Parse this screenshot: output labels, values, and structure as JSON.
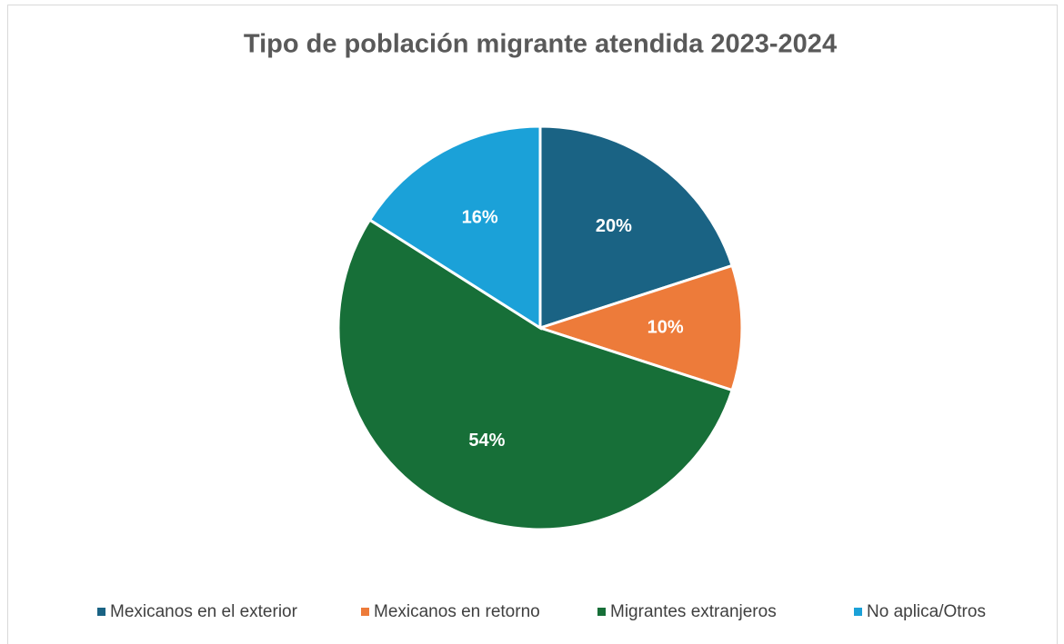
{
  "chart_data": {
    "type": "pie",
    "title": "Tipo de población migrante atendida 2023-2024",
    "categories": [
      "Mexicanos en el exterior",
      "Mexicanos en retorno",
      "Migrantes extranjeros",
      "No aplica/Otros"
    ],
    "values": [
      20,
      10,
      54,
      16
    ],
    "value_labels": [
      "20%",
      "10%",
      "54%",
      "16%"
    ],
    "colors": [
      "#1a6384",
      "#ed7b3a",
      "#176f38",
      "#1ba1d8"
    ],
    "legend": "bottom"
  }
}
